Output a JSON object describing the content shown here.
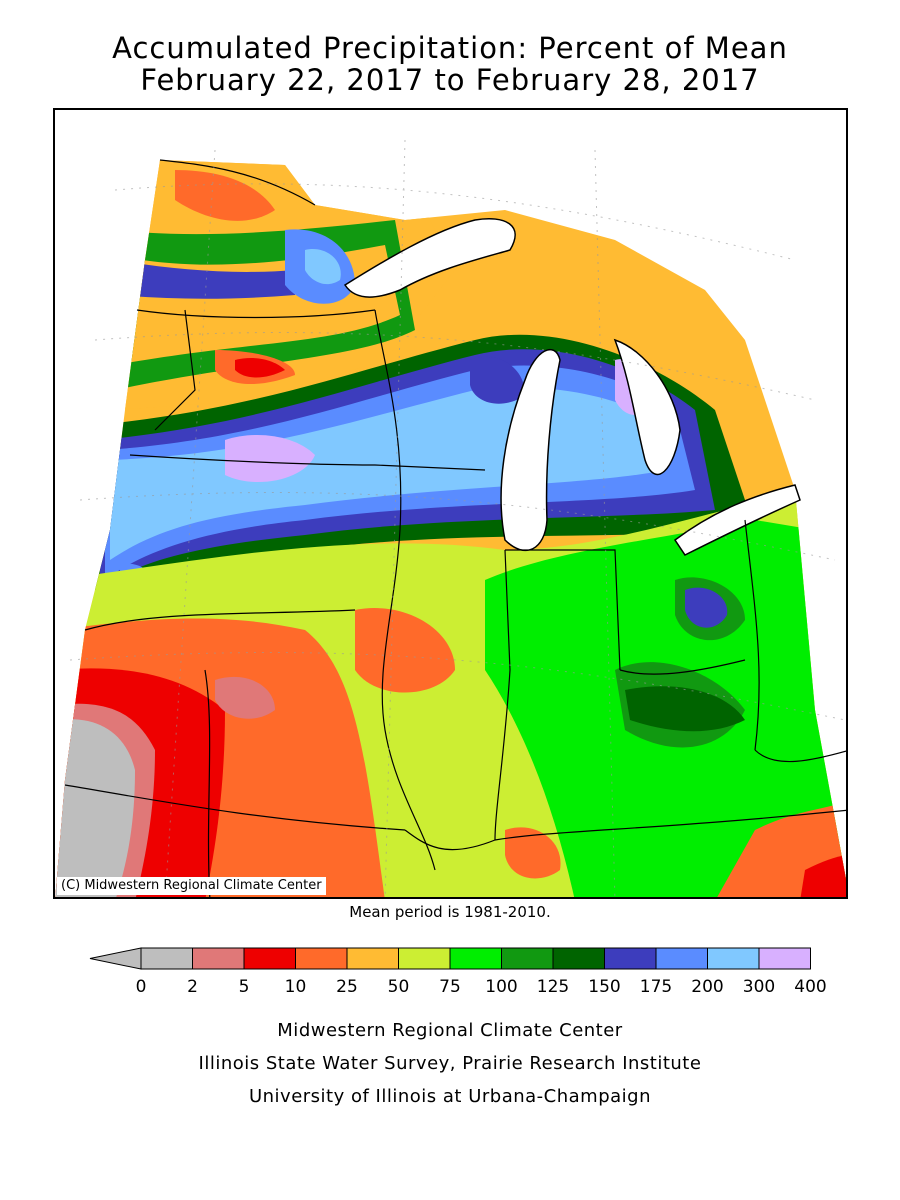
{
  "title_line1": "Accumulated Precipitation: Percent of Mean",
  "title_line2": "February 22, 2017 to February 28, 2017",
  "map_copyright": "(C) Midwestern Regional Climate Center",
  "mean_note": "Mean period is 1981-2010.",
  "legend": {
    "labels": [
      "0",
      "2",
      "5",
      "10",
      "25",
      "50",
      "75",
      "100",
      "125",
      "150",
      "175",
      "200",
      "300",
      "400"
    ],
    "colors": [
      "#bebebe",
      "#e07878",
      "#ee0000",
      "#ff6a2a",
      "#ffbb33",
      "#ccee33",
      "#00ee00",
      "#119911",
      "#006400",
      "#3d3dbd",
      "#5a8cff",
      "#80c8ff",
      "#d8b0ff"
    ],
    "below_color": "#bebebe"
  },
  "credits": {
    "line1": "Midwestern Regional Climate Center",
    "line2": "Illinois State Water Survey, Prairie Research Institute",
    "line3": "University of Illinois at Urbana-Champaign"
  }
}
